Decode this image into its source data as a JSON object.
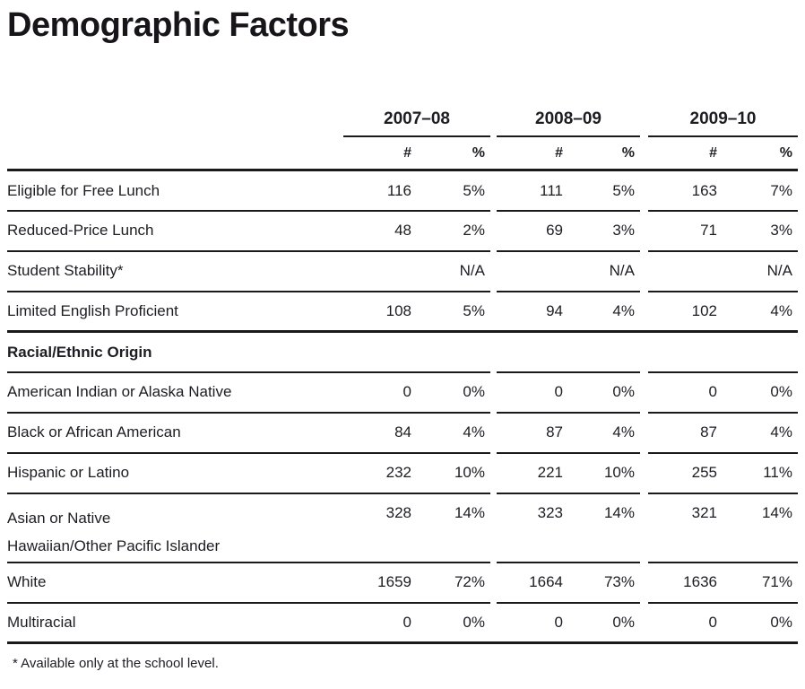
{
  "title": "Demographic Factors",
  "table": {
    "year_headers": [
      "2007–08",
      "2008–09",
      "2009–10"
    ],
    "subheaders": {
      "num": "#",
      "pct": "%"
    },
    "rows": [
      {
        "label": "Eligible for Free Lunch",
        "label2": "",
        "cells": [
          "116",
          "5%",
          "111",
          "5%",
          "163",
          "7%"
        ]
      },
      {
        "label": "Reduced-Price Lunch",
        "label2": "",
        "cells": [
          "48",
          "2%",
          "69",
          "3%",
          "71",
          "3%"
        ]
      },
      {
        "label": "Student Stability*",
        "label2": "",
        "cells": [
          "",
          "N/A",
          "",
          "N/A",
          "",
          "N/A"
        ]
      },
      {
        "label": "Limited English Proficient",
        "label2": "",
        "cells": [
          "108",
          "5%",
          "94",
          "4%",
          "102",
          "4%"
        ]
      },
      {
        "label": "Racial/Ethnic Origin",
        "label2": "",
        "cells": [
          "",
          "",
          "",
          "",
          "",
          ""
        ]
      },
      {
        "label": "American Indian or Alaska Native",
        "label2": "",
        "cells": [
          "0",
          "0%",
          "0",
          "0%",
          "0",
          "0%"
        ]
      },
      {
        "label": "Black or African American",
        "label2": "",
        "cells": [
          "84",
          "4%",
          "87",
          "4%",
          "87",
          "4%"
        ]
      },
      {
        "label": "Hispanic or Latino",
        "label2": "",
        "cells": [
          "232",
          "10%",
          "221",
          "10%",
          "255",
          "11%"
        ]
      },
      {
        "label": "Asian or Native",
        "label2": "Hawaiian/Other Pacific Islander",
        "cells": [
          "328",
          "14%",
          "323",
          "14%",
          "321",
          "14%"
        ]
      },
      {
        "label": "White",
        "label2": "",
        "cells": [
          "1659",
          "72%",
          "1664",
          "73%",
          "1636",
          "71%"
        ]
      },
      {
        "label": "Multiracial",
        "label2": "",
        "cells": [
          "0",
          "0%",
          "0",
          "0%",
          "0",
          "0%"
        ]
      }
    ],
    "footnote": "*  Available only at the school level."
  },
  "colors": {
    "text": "#1e1c22",
    "line": "#1a1a1a",
    "background": "#ffffff"
  }
}
